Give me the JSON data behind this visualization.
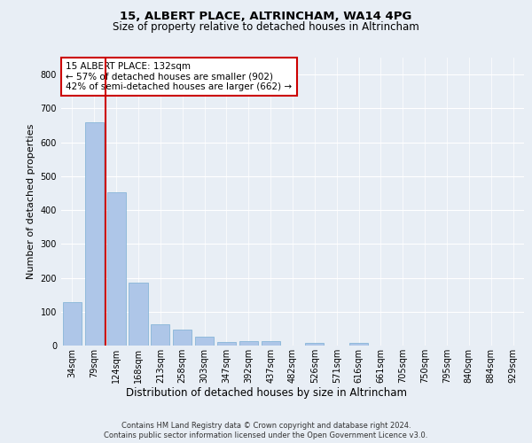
{
  "title1": "15, ALBERT PLACE, ALTRINCHAM, WA14 4PG",
  "title2": "Size of property relative to detached houses in Altrincham",
  "xlabel": "Distribution of detached houses by size in Altrincham",
  "ylabel": "Number of detached properties",
  "footer1": "Contains HM Land Registry data © Crown copyright and database right 2024.",
  "footer2": "Contains public sector information licensed under the Open Government Licence v3.0.",
  "annotation_line1": "15 ALBERT PLACE: 132sqm",
  "annotation_line2": "← 57% of detached houses are smaller (902)",
  "annotation_line3": "42% of semi-detached houses are larger (662) →",
  "categories": [
    "34sqm",
    "79sqm",
    "124sqm",
    "168sqm",
    "213sqm",
    "258sqm",
    "303sqm",
    "347sqm",
    "392sqm",
    "437sqm",
    "482sqm",
    "526sqm",
    "571sqm",
    "616sqm",
    "661sqm",
    "705sqm",
    "750sqm",
    "795sqm",
    "840sqm",
    "884sqm",
    "929sqm"
  ],
  "values": [
    128,
    660,
    452,
    185,
    63,
    48,
    25,
    11,
    13,
    12,
    0,
    7,
    0,
    9,
    0,
    0,
    0,
    0,
    0,
    0,
    0
  ],
  "bar_color": "#aec6e8",
  "bar_edge_color": "#7aafd4",
  "vline_color": "#cc0000",
  "vline_x": 1.5,
  "bg_color": "#e8eef5",
  "plot_bg_color": "#e8eef5",
  "grid_color": "#ffffff",
  "ylim": [
    0,
    850
  ],
  "yticks": [
    0,
    100,
    200,
    300,
    400,
    500,
    600,
    700,
    800
  ],
  "annotation_box_facecolor": "#ffffff",
  "annotation_box_edge": "#cc0000",
  "title1_fontsize": 9.5,
  "title2_fontsize": 8.5,
  "ylabel_fontsize": 8,
  "xlabel_fontsize": 8.5,
  "tick_fontsize": 7,
  "ann_fontsize": 7.5,
  "footer_fontsize": 6
}
